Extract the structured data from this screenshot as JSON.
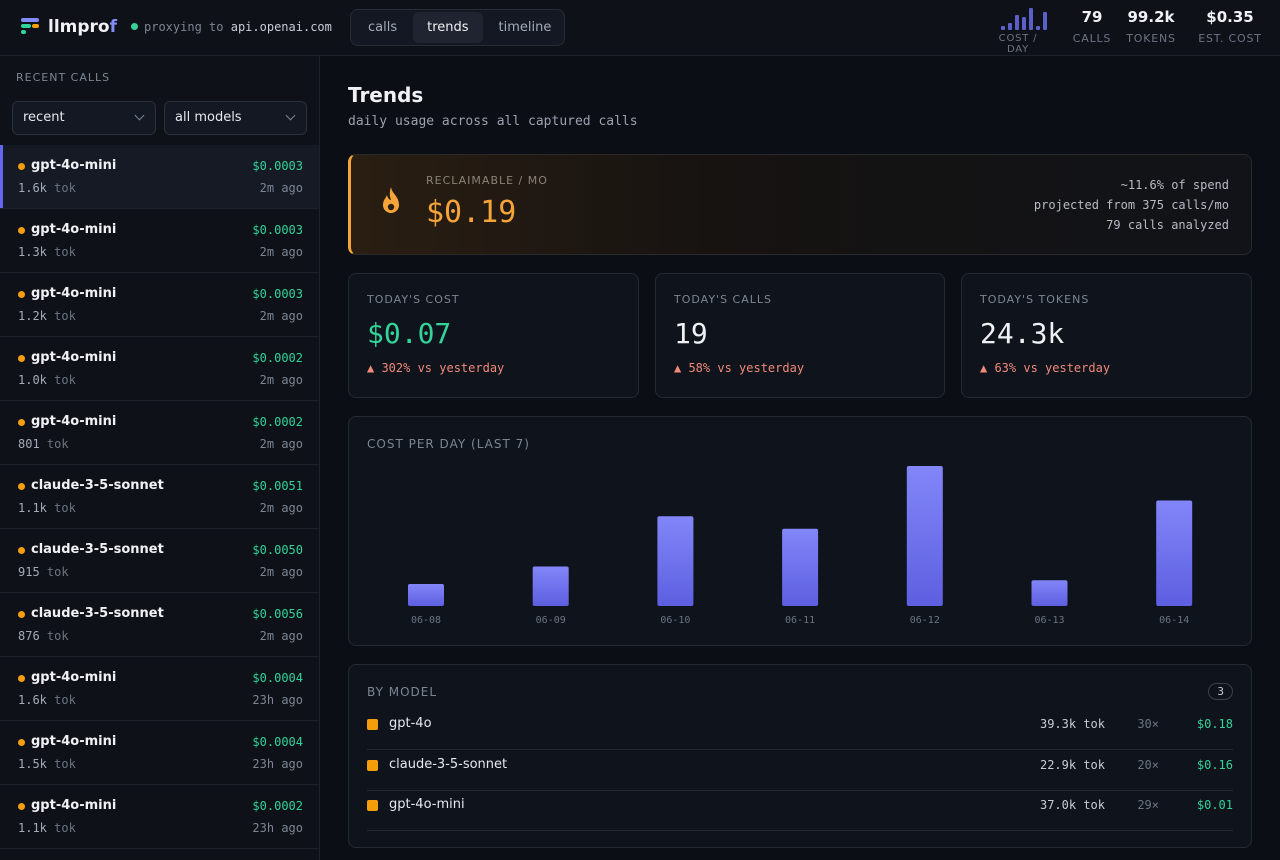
{
  "app": {
    "brand_main": "llmpro",
    "brand_accent": "f",
    "proxy_prefix": "proxying to",
    "proxy_host": "api.openai.com"
  },
  "tabs": [
    {
      "label": "calls",
      "active": false
    },
    {
      "label": "trends",
      "active": true
    },
    {
      "label": "timeline",
      "active": false
    }
  ],
  "header_stats": {
    "sparkline_label": "COST / DAY",
    "sparkline_values": [
      0.005,
      0.01,
      0.02,
      0.018,
      0.03,
      0.006,
      0.025
    ],
    "calls_value": "79",
    "calls_label": "CALLS",
    "tokens_value": "99.2k",
    "tokens_label": "TOKENS",
    "cost_value": "$0.35",
    "cost_label": "EST. COST"
  },
  "sidebar": {
    "title": "RECENT CALLS",
    "sort_select": "recent",
    "model_select": "all models",
    "calls": [
      {
        "model": "gpt-4o-mini",
        "cost": "$0.0003",
        "tokens": "1.6k",
        "unit": "tok",
        "ago": "2m ago",
        "selected": true
      },
      {
        "model": "gpt-4o-mini",
        "cost": "$0.0003",
        "tokens": "1.3k",
        "unit": "tok",
        "ago": "2m ago"
      },
      {
        "model": "gpt-4o-mini",
        "cost": "$0.0003",
        "tokens": "1.2k",
        "unit": "tok",
        "ago": "2m ago"
      },
      {
        "model": "gpt-4o-mini",
        "cost": "$0.0002",
        "tokens": "1.0k",
        "unit": "tok",
        "ago": "2m ago"
      },
      {
        "model": "gpt-4o-mini",
        "cost": "$0.0002",
        "tokens": "801",
        "unit": "tok",
        "ago": "2m ago"
      },
      {
        "model": "claude-3-5-sonnet",
        "cost": "$0.0051",
        "tokens": "1.1k",
        "unit": "tok",
        "ago": "2m ago"
      },
      {
        "model": "claude-3-5-sonnet",
        "cost": "$0.0050",
        "tokens": "915",
        "unit": "tok",
        "ago": "2m ago"
      },
      {
        "model": "claude-3-5-sonnet",
        "cost": "$0.0056",
        "tokens": "876",
        "unit": "tok",
        "ago": "2m ago"
      },
      {
        "model": "gpt-4o-mini",
        "cost": "$0.0004",
        "tokens": "1.6k",
        "unit": "tok",
        "ago": "23h ago"
      },
      {
        "model": "gpt-4o-mini",
        "cost": "$0.0004",
        "tokens": "1.5k",
        "unit": "tok",
        "ago": "23h ago"
      },
      {
        "model": "gpt-4o-mini",
        "cost": "$0.0002",
        "tokens": "1.1k",
        "unit": "tok",
        "ago": "23h ago"
      }
    ]
  },
  "main": {
    "title": "Trends",
    "subtitle": "daily usage across all captured calls",
    "reclaimable": {
      "label": "RECLAIMABLE / MO",
      "amount": "$0.19",
      "note1": "~11.6% of spend",
      "note2": "projected from 375 calls/mo",
      "note3": "79 calls analyzed"
    },
    "cards": [
      {
        "label": "TODAY'S COST",
        "value": "$0.07",
        "delta": "▲ 302% vs yesterday"
      },
      {
        "label": "TODAY'S CALLS",
        "value": "19",
        "delta": "▲ 58% vs yesterday"
      },
      {
        "label": "TODAY'S TOKENS",
        "value": "24.3k",
        "delta": "▲ 63% vs yesterday"
      }
    ],
    "by_model": {
      "label": "BY MODEL",
      "count": "3",
      "rows": [
        {
          "name": "gpt-4o",
          "tokens": "39.3k tok",
          "calls": "30×",
          "cost": "$0.18"
        },
        {
          "name": "claude-3-5-sonnet",
          "tokens": "22.9k tok",
          "calls": "20×",
          "cost": "$0.16"
        },
        {
          "name": "gpt-4o-mini",
          "tokens": "37.0k tok",
          "calls": "29×",
          "cost": "$0.01"
        }
      ]
    }
  },
  "chart_data": {
    "type": "bar",
    "title": "COST PER DAY (LAST 7)",
    "categories": [
      "06-08",
      "06-09",
      "06-10",
      "06-11",
      "06-12",
      "06-13",
      "06-14"
    ],
    "values": [
      0.0035,
      0.0063,
      0.0143,
      0.0123,
      0.0223,
      0.0041,
      0.0168
    ],
    "ylim": [
      0,
      0.0223
    ],
    "grid": false,
    "color": "#6c70f0"
  },
  "colors": {
    "accent": "#6366f1",
    "green": "#34d399",
    "orange": "#f5a43a",
    "dot": "#f59e0b",
    "delta": "#f08a7a"
  }
}
